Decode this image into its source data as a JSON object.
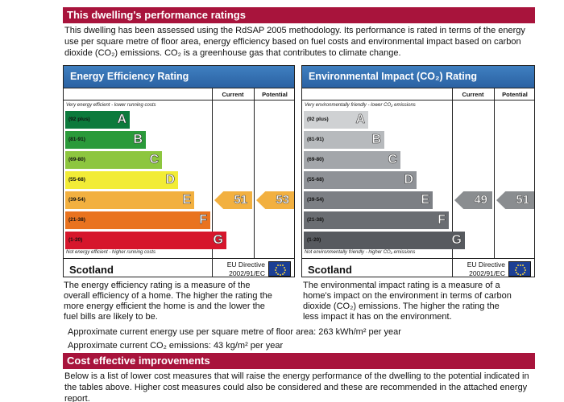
{
  "section1": {
    "title": "This dwelling's performance ratings",
    "intro_lines": [
      "This dwelling has been assessed using the RdSAP 2005 methodology. Its performance is rated in terms of the energy",
      "use per square metre of floor area, energy efficiency based on fuel costs and environmental impact based on carbon",
      "dioxide (CO₂) emissions. CO₂ is a greenhouse gas that contributes to climate change."
    ]
  },
  "energy": {
    "title": "Energy Efficiency Rating",
    "col_current": "Current",
    "col_potential": "Potential",
    "top_note": "Very energy efficient - lower running costs",
    "bottom_note": "Not energy efficient - higher running costs",
    "bands": [
      {
        "range": "(92 plus)",
        "letter": "A",
        "color": "#0c7a3c"
      },
      {
        "range": "(81-91)",
        "letter": "B",
        "color": "#2a9a3a"
      },
      {
        "range": "(69-80)",
        "letter": "C",
        "color": "#8dc63f"
      },
      {
        "range": "(55-68)",
        "letter": "D",
        "color": "#f2ec36"
      },
      {
        "range": "(39-54)",
        "letter": "E",
        "color": "#f2b040"
      },
      {
        "range": "(21-38)",
        "letter": "F",
        "color": "#e9731f"
      },
      {
        "range": "(1-20)",
        "letter": "G",
        "color": "#d6162c"
      }
    ],
    "current": "51",
    "potential": "53",
    "arrow_color": "#f2b040",
    "country": "Scotland",
    "eu_directive": "EU Directive",
    "eu_code": "2002/91/EC"
  },
  "environment": {
    "title": "Environmental Impact (CO₂) Rating",
    "col_current": "Current",
    "col_potential": "Potential",
    "top_note": "Very environmentally friendly - lower CO₂ emissions",
    "bottom_note": "Not environmentally friendly - higher CO₂ emissions",
    "bands": [
      {
        "range": "(92 plus)",
        "letter": "A",
        "color": "#cfd1d3"
      },
      {
        "range": "(81-91)",
        "letter": "B",
        "color": "#b7babd"
      },
      {
        "range": "(69-80)",
        "letter": "C",
        "color": "#a3a6aa"
      },
      {
        "range": "(55-68)",
        "letter": "D",
        "color": "#8f9297"
      },
      {
        "range": "(39-54)",
        "letter": "E",
        "color": "#7c7f84"
      },
      {
        "range": "(21-38)",
        "letter": "F",
        "color": "#6a6d72"
      },
      {
        "range": "(1-20)",
        "letter": "G",
        "color": "#575a5f"
      }
    ],
    "current": "49",
    "potential": "51",
    "arrow_color": "#8a8d90",
    "country": "Scotland",
    "eu_directive": "EU Directive",
    "eu_code": "2002/91/EC"
  },
  "descriptions": {
    "energy_lines": [
      "The energy efficiency rating is a measure of the",
      "overall efficiency of a home. The higher the rating the",
      "more energy efficient the home is and the lower the",
      "fuel bills are likely to be."
    ],
    "environment_lines": [
      "The environmental impact rating is a measure of a",
      "home's impact on the environment in terms of carbon",
      "dioxide (CO₂) emissions. The higher the rating the",
      "less impact it has on the environment."
    ]
  },
  "metrics": {
    "energy_use": "Approximate current energy use per square metre of floor area: 263 kWh/m² per year",
    "co2": "Approximate current CO₂ emissions: 43 kg/m² per year"
  },
  "section2": {
    "title": "Cost effective improvements",
    "lines": [
      "Below is a list of lower cost measures that will raise the energy performance of the dwelling to the potential indicated in",
      "the tables above. Higher cost measures could also be considered and these are recommended in the attached energy",
      "report."
    ]
  }
}
